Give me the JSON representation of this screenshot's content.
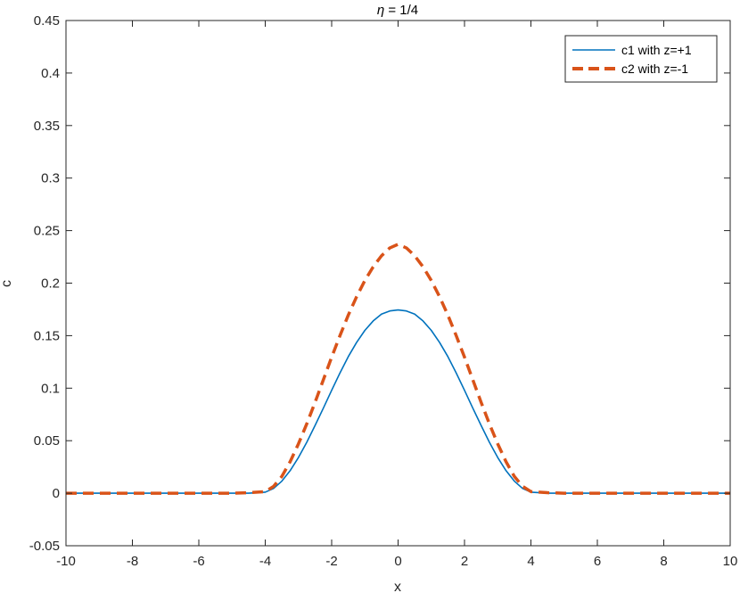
{
  "chart_data": {
    "type": "line",
    "title_prefix": "η",
    "title_suffix": " = 1/4",
    "xlabel": "x",
    "ylabel": "c",
    "xlim": [
      -10,
      10
    ],
    "ylim": [
      -0.05,
      0.45
    ],
    "x_ticks": [
      -10,
      -8,
      -6,
      -4,
      -2,
      0,
      2,
      4,
      6,
      8,
      10
    ],
    "x_tick_labels": [
      "-10",
      "-8",
      "-6",
      "-4",
      "-2",
      "0",
      "2",
      "4",
      "6",
      "8",
      "10"
    ],
    "y_ticks": [
      -0.05,
      0,
      0.05,
      0.1,
      0.15,
      0.2,
      0.25,
      0.3,
      0.35,
      0.4,
      0.45
    ],
    "y_tick_labels": [
      "-0.05",
      "0",
      "0.05",
      "0.1",
      "0.15",
      "0.2",
      "0.25",
      "0.3",
      "0.35",
      "0.4",
      "0.45"
    ],
    "grid": false,
    "legend_position": "top-right",
    "x": [
      -10,
      -9,
      -8,
      -7,
      -6,
      -5,
      -4.5,
      -4,
      -3.75,
      -3.5,
      -3.25,
      -3,
      -2.75,
      -2.5,
      -2.25,
      -2,
      -1.75,
      -1.5,
      -1.25,
      -1,
      -0.75,
      -0.5,
      -0.25,
      0,
      0.25,
      0.5,
      0.75,
      1,
      1.25,
      1.5,
      1.75,
      2,
      2.25,
      2.5,
      2.75,
      3,
      3.25,
      3.5,
      3.75,
      4,
      4.5,
      5,
      6,
      7,
      8,
      9,
      10
    ],
    "series": [
      {
        "name": "c1 with z=+1",
        "color": "#0072BD",
        "style": "solid",
        "values": [
          0,
          0,
          0,
          0,
          0,
          0,
          0,
          0.001,
          0.0045,
          0.0115,
          0.0215,
          0.034,
          0.0485,
          0.0645,
          0.081,
          0.098,
          0.1145,
          0.13,
          0.1435,
          0.155,
          0.164,
          0.1705,
          0.1735,
          0.1745,
          0.1735,
          0.1705,
          0.164,
          0.155,
          0.1435,
          0.13,
          0.1145,
          0.098,
          0.081,
          0.0645,
          0.0485,
          0.034,
          0.0215,
          0.0115,
          0.0045,
          0.001,
          0,
          0,
          0,
          0,
          0,
          0,
          0
        ]
      },
      {
        "name": "c2 with z=-1",
        "color": "#D95319",
        "style": "dashed",
        "values": [
          0,
          0,
          0,
          0,
          0,
          0,
          0.0005,
          0.0015,
          0.0065,
          0.016,
          0.03,
          0.047,
          0.066,
          0.0865,
          0.108,
          0.1295,
          0.15,
          0.1695,
          0.187,
          0.2025,
          0.2155,
          0.226,
          0.2335,
          0.237,
          0.2335,
          0.226,
          0.2155,
          0.2025,
          0.187,
          0.1695,
          0.15,
          0.1295,
          0.108,
          0.0865,
          0.066,
          0.047,
          0.03,
          0.016,
          0.0065,
          0.0015,
          0.0005,
          0,
          0,
          0,
          0,
          0,
          0
        ]
      }
    ]
  }
}
